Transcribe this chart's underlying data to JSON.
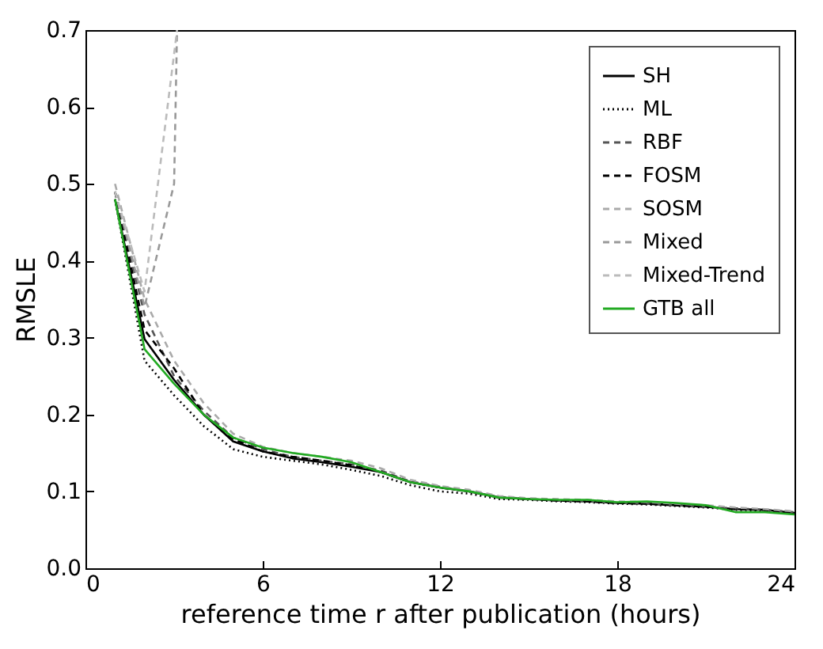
{
  "chart_data": {
    "type": "line",
    "xlabel": "reference time r after publication (hours)",
    "ylabel": "RMSLE",
    "x": [
      1,
      2,
      3,
      4,
      5,
      6,
      7,
      8,
      9,
      10,
      11,
      12,
      13,
      14,
      15,
      16,
      17,
      18,
      19,
      20,
      21,
      22,
      23,
      24
    ],
    "xlim": [
      0,
      24
    ],
    "xticks": [
      0,
      6,
      12,
      18,
      24
    ],
    "ylim": [
      0,
      0.7
    ],
    "yticks": [
      {
        "value": 0,
        "label": "0.0"
      },
      {
        "value": 0.1,
        "label": "0.1"
      },
      {
        "value": 0.2,
        "label": "0.2"
      },
      {
        "value": 0.3,
        "label": "0.3"
      },
      {
        "value": 0.4,
        "label": "0.4"
      },
      {
        "value": 0.5,
        "label": "0.5"
      },
      {
        "value": 0.6,
        "label": "0.6"
      },
      {
        "value": 0.7,
        "label": "0.7"
      }
    ],
    "legend": "top right",
    "grid": false,
    "series": [
      {
        "name": "SH",
        "color": "#000000",
        "line_style": "solid",
        "values": [
          0.48,
          0.298,
          0.245,
          0.2,
          0.165,
          0.152,
          0.143,
          0.138,
          0.132,
          0.125,
          0.112,
          0.105,
          0.1,
          0.092,
          0.09,
          0.088,
          0.087,
          0.085,
          0.084,
          0.082,
          0.08,
          0.077,
          0.076,
          0.072
        ]
      },
      {
        "name": "ML",
        "color": "#000000",
        "line_style": "dotted",
        "values": [
          0.48,
          0.27,
          0.225,
          0.185,
          0.155,
          0.145,
          0.14,
          0.135,
          0.128,
          0.12,
          0.108,
          0.1,
          0.097,
          0.09,
          0.089,
          0.087,
          0.086,
          0.084,
          0.083,
          0.081,
          0.079,
          0.076,
          0.075,
          0.071
        ]
      },
      {
        "name": "RBF",
        "color": "#555555",
        "line_style": "dashed",
        "values": [
          0.49,
          0.33,
          0.25,
          0.205,
          0.17,
          0.155,
          0.145,
          0.14,
          0.135,
          0.127,
          0.113,
          0.106,
          0.1,
          0.093,
          0.09,
          0.088,
          0.087,
          0.085,
          0.084,
          0.082,
          0.08,
          0.078,
          0.076,
          0.073
        ]
      },
      {
        "name": "FOSM",
        "color": "#000000",
        "line_style": "dashed",
        "values": [
          0.49,
          0.31,
          0.26,
          0.2,
          0.168,
          0.152,
          0.145,
          0.14,
          0.134,
          0.125,
          0.112,
          0.105,
          0.1,
          0.092,
          0.09,
          0.088,
          0.087,
          0.085,
          0.084,
          0.082,
          0.08,
          0.077,
          0.076,
          0.072
        ]
      },
      {
        "name": "SOSM",
        "color": "#aaaaaa",
        "line_style": "dashed",
        "values": [
          0.5,
          0.35,
          0.27,
          0.215,
          0.175,
          0.158,
          0.15,
          0.145,
          0.14,
          0.13,
          0.115,
          0.107,
          0.102,
          0.094,
          0.091,
          0.09,
          0.089,
          0.087,
          0.086,
          0.084,
          0.082,
          0.079,
          0.077,
          0.074
        ]
      },
      {
        "name": "Mixed",
        "color": "#999999",
        "line_style": "dashed",
        "x": [
          1,
          2,
          3,
          3.1
        ],
        "values": [
          0.49,
          0.34,
          0.5,
          0.7
        ]
      },
      {
        "name": "Mixed-Trend",
        "color": "#bbbbbb",
        "line_style": "dashed",
        "x": [
          1,
          2,
          3.1
        ],
        "values": [
          0.49,
          0.36,
          0.7
        ]
      },
      {
        "name": "GTB all",
        "color": "#22aa22",
        "line_style": "solid",
        "values": [
          0.48,
          0.285,
          0.24,
          0.2,
          0.17,
          0.157,
          0.15,
          0.145,
          0.138,
          0.125,
          0.112,
          0.105,
          0.1,
          0.092,
          0.09,
          0.089,
          0.089,
          0.086,
          0.087,
          0.085,
          0.082,
          0.073,
          0.073,
          0.07
        ]
      }
    ]
  }
}
